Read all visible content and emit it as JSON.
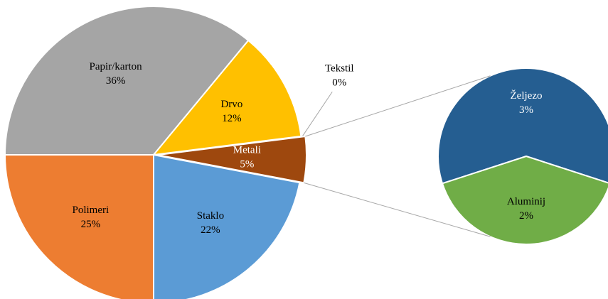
{
  "chart_data": [
    {
      "type": "pie",
      "categories": [
        "Papir/karton",
        "Drvo",
        "Tekstil",
        "Metali",
        "Staklo",
        "Polimeri"
      ],
      "values": [
        36,
        12,
        0,
        5,
        22,
        25
      ],
      "value_labels": [
        "36%",
        "12%",
        "0%",
        "5%",
        "22%",
        "25%"
      ],
      "colors": [
        "#a5a5a5",
        "#ffc000",
        "#7f7f7f",
        "#9e480e",
        "#5b9bd5",
        "#ed7d31"
      ]
    },
    {
      "type": "pie",
      "categories": [
        "Željezo",
        "Aluminij"
      ],
      "values": [
        3,
        2
      ],
      "value_labels": [
        "3%",
        "2%"
      ],
      "colors": [
        "#255e91",
        "#70ad47"
      ]
    }
  ]
}
